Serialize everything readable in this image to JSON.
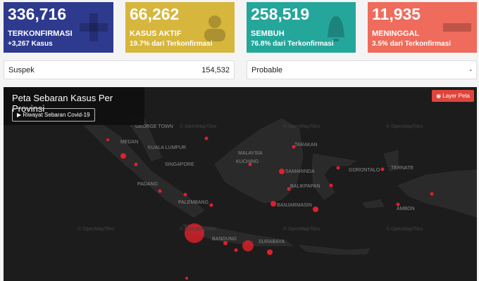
{
  "cards": [
    {
      "value": "336,716",
      "label": "TERKONFIRMASI",
      "sub": "+3,267 Kasus"
    },
    {
      "value": "66,262",
      "label": "KASUS AKTIF",
      "sub": "19.7% dari Terkonfirmasi"
    },
    {
      "value": "258,519",
      "label": "SEMBUH",
      "sub": "76.8% dari Terkonfirmasi"
    },
    {
      "value": "11,935",
      "label": "MENINGGAL",
      "sub": "3.5% dari Terkonfirmasi"
    }
  ],
  "info": [
    {
      "label": "Suspek",
      "value": "154,532"
    },
    {
      "label": "Probable",
      "value": "-"
    }
  ],
  "map": {
    "title": "Peta Sebaran Kasus Per Provinsi",
    "button": "Riwayat Sebaran Covid-19",
    "layer_button": "Layer Peta",
    "watermark": "© OpenMapTiles",
    "places": [
      "GEORGE TOWN",
      "MEDAN",
      "KUALA LUMPUR",
      "SINGAPORE",
      "PADANG",
      "PALEMBANG",
      "BANDUNG",
      "SURABAYA",
      "MALAYSIA",
      "KUCHING",
      "TARAKAN",
      "SAMARINDA",
      "BALIKPAPAN",
      "BANJARMASIN",
      "GORONTALO",
      "TERNATE",
      "AMBON"
    ]
  }
}
